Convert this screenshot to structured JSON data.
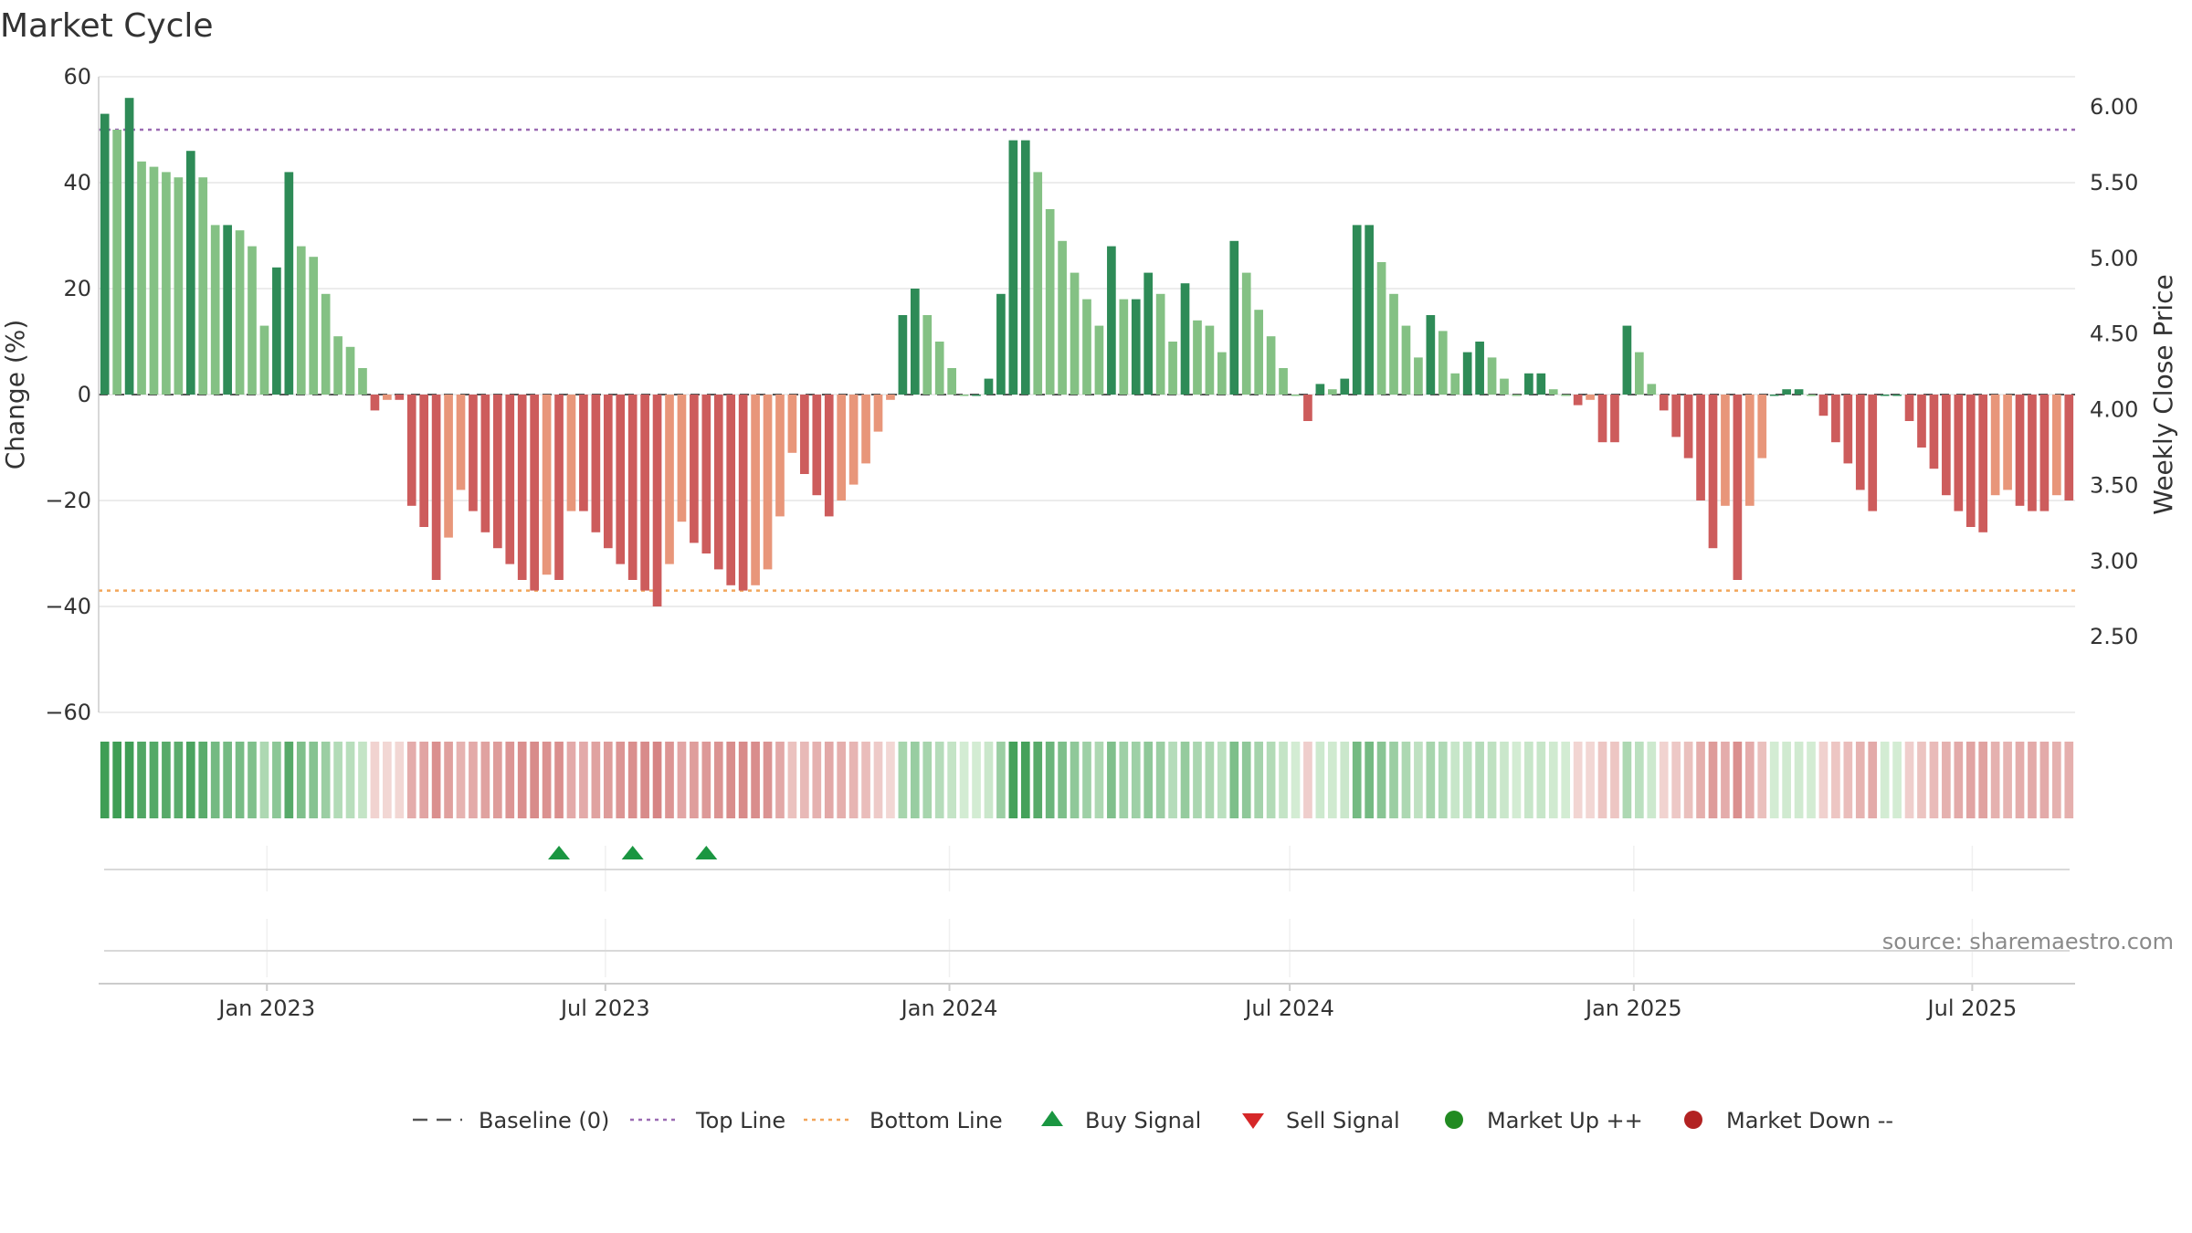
{
  "chart_data": {
    "type": "bar",
    "title": "Market Cycle",
    "ylabel_left": "Change (%)",
    "ylabel_right": "Weekly Close Price",
    "ylim": [
      -60,
      60
    ],
    "y_ticks": [
      60,
      40,
      20,
      0,
      -20,
      -40,
      -60
    ],
    "y_tick_labels": [
      "60",
      "40",
      "20",
      "0",
      "−20",
      "−40",
      "−60"
    ],
    "y2lim": [
      2.0,
      6.2
    ],
    "y2_ticks": [
      6.0,
      5.5,
      5.0,
      4.5,
      4.0,
      3.5,
      3.0,
      2.5
    ],
    "y2_tick_labels": [
      "6.00",
      "5.50",
      "5.00",
      "4.50",
      "4.00",
      "3.50",
      "3.00",
      "2.50"
    ],
    "x_range": [
      "2022-10-03",
      "2025-08-25"
    ],
    "x_ticks": [
      {
        "date": "2023-01-01",
        "label": "Jan 2023"
      },
      {
        "date": "2023-07-01",
        "label": "Jul 2023"
      },
      {
        "date": "2024-01-01",
        "label": "Jan 2024"
      },
      {
        "date": "2024-07-01",
        "label": "Jul 2024"
      },
      {
        "date": "2025-01-01",
        "label": "Jan 2025"
      },
      {
        "date": "2025-07-01",
        "label": "Jul 2025"
      }
    ],
    "series_start_date": "2022-10-03",
    "week_step_days": 7,
    "values": [
      53,
      50,
      56,
      44,
      43,
      42,
      41,
      46,
      41,
      32,
      32,
      31,
      28,
      13,
      24,
      42,
      28,
      26,
      19,
      11,
      9,
      5,
      -3,
      -1,
      -1,
      -21,
      -25,
      -35,
      -27,
      -18,
      -22,
      -26,
      -29,
      -32,
      -35,
      -37,
      -34,
      -35,
      -22,
      -22,
      -26,
      -29,
      -32,
      -35,
      -37,
      -40,
      -32,
      -24,
      -28,
      -30,
      -33,
      -36,
      -37,
      -36,
      -33,
      -23,
      -11,
      -15,
      -19,
      -23,
      -20,
      -17,
      -13,
      -7,
      -1,
      15,
      20,
      15,
      10,
      5,
      0,
      0,
      3,
      19,
      48,
      48,
      42,
      35,
      29,
      23,
      18,
      13,
      28,
      18,
      18,
      23,
      19,
      10,
      21,
      14,
      13,
      8,
      29,
      23,
      16,
      11,
      5,
      0,
      -5,
      2,
      1,
      3,
      32,
      32,
      25,
      19,
      13,
      7,
      15,
      12,
      4,
      8,
      10,
      7,
      3,
      0,
      4,
      4,
      1,
      0,
      -2,
      -1,
      -9,
      -9,
      13,
      8,
      2,
      -3,
      -8,
      -12,
      -20,
      -29,
      -21,
      -35,
      -21,
      -12,
      0,
      1,
      1,
      0,
      -4,
      -9,
      -13,
      -18,
      -22,
      0,
      0,
      -5,
      -10,
      -14,
      -19,
      -22,
      -25,
      -26,
      -19,
      -18,
      -21,
      -22,
      -22,
      -19,
      -20
    ],
    "reference_lines": [
      {
        "name": "Top Line",
        "value": 50,
        "color": "#9b6bb3"
      },
      {
        "name": "Bottom Line",
        "value": -37,
        "color": "#f2a65a"
      },
      {
        "name": "Baseline (0)",
        "value": 0,
        "color": "#555555"
      }
    ],
    "heat_strip": "color intensity follows bar value",
    "buy_signals": [
      "2023-06-19",
      "2023-07-31",
      "2023-09-11"
    ],
    "sell_signals": [],
    "market_up": [],
    "market_down": [],
    "colors": {
      "strong_up": "#2e8b57",
      "up": "#84c184",
      "strong_down": "#cd5c5c",
      "down": "#e8967a",
      "buy": "#1a9641",
      "sell": "#d62728",
      "market_up": "#228b22",
      "market_down": "#b22222",
      "grid": "#e6e6e6",
      "axis": "#cccccc"
    },
    "legend": [
      {
        "name": "Baseline (0)",
        "kind": "dash",
        "color": "#555555"
      },
      {
        "name": "Top Line",
        "kind": "dot",
        "color": "#9b6bb3"
      },
      {
        "name": "Bottom Line",
        "kind": "dot",
        "color": "#f2a65a"
      },
      {
        "name": "Buy Signal",
        "kind": "triangle-up",
        "color": "#1a9641"
      },
      {
        "name": "Sell Signal",
        "kind": "triangle-down",
        "color": "#d62728"
      },
      {
        "name": "Market Up ++",
        "kind": "circle",
        "color": "#228b22"
      },
      {
        "name": "Market Down --",
        "kind": "circle",
        "color": "#b22222"
      }
    ],
    "legend_position": "bottom-center"
  },
  "source_text": "source: sharemaestro.com"
}
